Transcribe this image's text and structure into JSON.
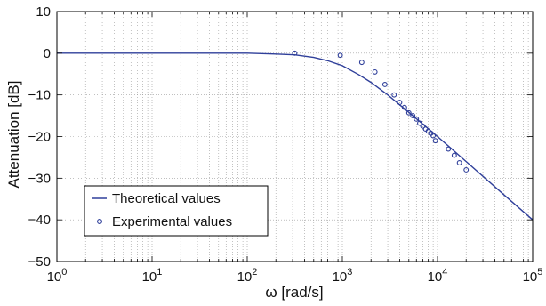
{
  "chart_data": {
    "type": "line",
    "title": "",
    "xlabel": "ω [rad/s]",
    "ylabel": "Attenuation [dB]",
    "x_scale": "log",
    "xlim": [
      1,
      100000
    ],
    "ylim": [
      -50,
      10
    ],
    "x_ticks": [
      1,
      10,
      100,
      1000,
      10000,
      100000
    ],
    "x_tick_labels": [
      {
        "base": "10",
        "exp": "0"
      },
      {
        "base": "10",
        "exp": "1"
      },
      {
        "base": "10",
        "exp": "2"
      },
      {
        "base": "10",
        "exp": "3"
      },
      {
        "base": "10",
        "exp": "4"
      },
      {
        "base": "10",
        "exp": "5"
      }
    ],
    "y_ticks": [
      10,
      0,
      -10,
      -20,
      -30,
      -40,
      -50
    ],
    "y_tick_labels": [
      "10",
      "0",
      "−10",
      "−20",
      "−30",
      "−40",
      "−50"
    ],
    "grid": true,
    "grid_style": "dotted",
    "legend_position": "bottom-left",
    "colors": {
      "series": "#2f3f9a",
      "axis": "#000000",
      "grid": "#9a9a9a"
    },
    "series": [
      {
        "name": "Theoretical values",
        "kind": "line",
        "x": [
          1,
          10,
          100,
          200,
          316,
          500,
          700,
          1000,
          1500,
          2000,
          3000,
          5000,
          7000,
          10000,
          20000,
          50000,
          100000
        ],
        "y": [
          0,
          0,
          0,
          -0.2,
          -0.4,
          -1.0,
          -1.8,
          -3.0,
          -5.2,
          -7.0,
          -10.0,
          -14.2,
          -17.0,
          -20.0,
          -26.0,
          -34.0,
          -40.0
        ]
      },
      {
        "name": "Experimental values",
        "kind": "scatter",
        "x": [
          316,
          950,
          1600,
          2200,
          2800,
          3500,
          4000,
          4500,
          5000,
          5500,
          6000,
          6500,
          7000,
          7500,
          8000,
          8500,
          9000,
          9500,
          13000,
          15000,
          17000,
          20000
        ],
        "y": [
          0.0,
          -0.5,
          -2.2,
          -4.5,
          -7.5,
          -10.0,
          -11.8,
          -13.0,
          -14.3,
          -15.0,
          -15.8,
          -16.8,
          -17.5,
          -18.2,
          -18.7,
          -19.2,
          -19.8,
          -21.0,
          -23.0,
          -24.5,
          -26.3,
          -28.0
        ]
      }
    ]
  }
}
